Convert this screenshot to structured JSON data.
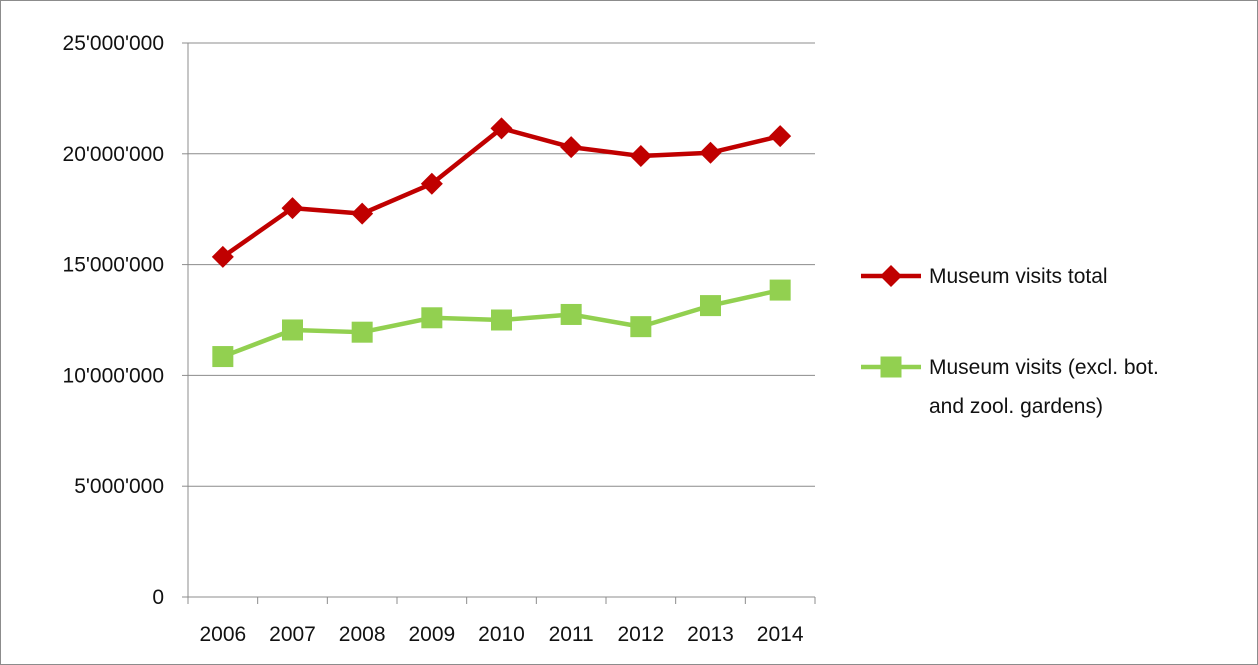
{
  "chart_data": {
    "type": "line",
    "categories": [
      "2006",
      "2007",
      "2008",
      "2009",
      "2010",
      "2011",
      "2012",
      "2013",
      "2014"
    ],
    "ylim": [
      0,
      25000000
    ],
    "ytick_values": [
      0,
      5000000,
      10000000,
      15000000,
      20000000,
      25000000
    ],
    "ytick_labels": [
      "0",
      "5'000'000",
      "10'000'000",
      "15'000'000",
      "20'000'000",
      "25'000'000"
    ],
    "grid": "horizontal",
    "legend_position": "right",
    "title": "",
    "xlabel": "",
    "ylabel": "",
    "series": [
      {
        "name": "Museum visits total",
        "legend_lines": [
          "Museum visits total"
        ],
        "color": "#c00000",
        "marker": "diamond",
        "values": [
          15350000,
          17550000,
          17300000,
          18650000,
          21150000,
          20300000,
          19900000,
          20050000,
          20800000
        ]
      },
      {
        "name": "Museum visits (excl. bot. and zool. gardens)",
        "legend_lines": [
          "Museum visits (excl. bot.",
          "and zool. gardens)"
        ],
        "color": "#92d050",
        "marker": "square",
        "values": [
          10850000,
          12050000,
          11950000,
          12600000,
          12500000,
          12750000,
          12200000,
          13150000,
          13850000
        ]
      }
    ]
  }
}
